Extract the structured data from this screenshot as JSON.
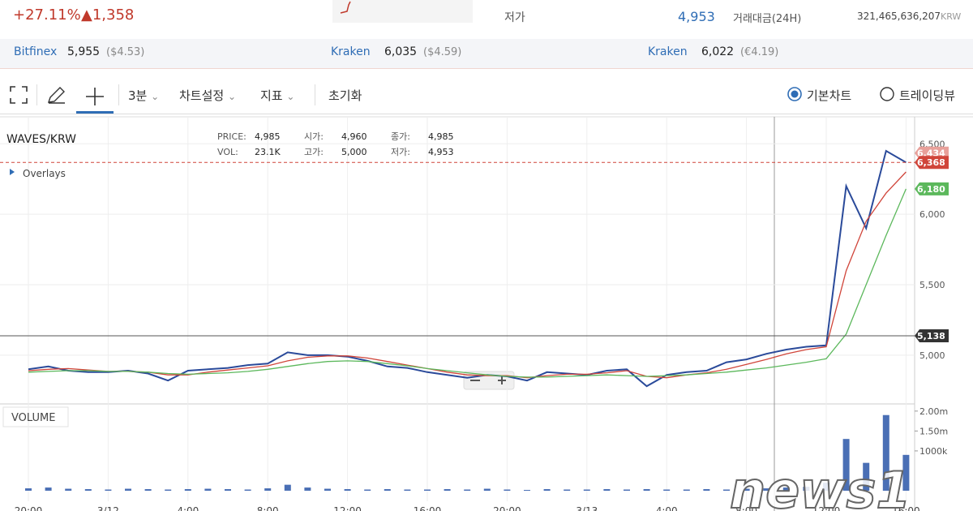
{
  "header": {
    "change_pct": "+27.11%",
    "change_amt": "▲1,358",
    "low_label": "저가",
    "low_value": "4,953",
    "volume_label": "거래대금(24H)",
    "volume_value": "321,465,636,207",
    "volume_unit": "KRW"
  },
  "exchanges": [
    {
      "name": "Bitfinex",
      "price": "5,955",
      "converted": "($4.53)"
    },
    {
      "name": "Kraken",
      "price": "6,035",
      "converted": "($4.59)"
    },
    {
      "name": "Kraken",
      "price": "6,022",
      "converted": "(€4.19)"
    }
  ],
  "toolbar": {
    "interval": "3분",
    "settings": "차트설정",
    "indicators": "지표",
    "reset": "초기화",
    "options": [
      "기본차트",
      "트레이딩뷰"
    ]
  },
  "chart_data": [
    {
      "type": "line",
      "title": "WAVES/KRW",
      "overlays": "Overlays",
      "info": [
        {
          "label": "PRICE:",
          "value": "4,985"
        },
        {
          "label": "시가:",
          "value": "4,960"
        },
        {
          "label": "종가:",
          "value": "4,985"
        },
        {
          "label": "VOL:",
          "value": "23.1K"
        },
        {
          "label": "고가:",
          "value": "5,000"
        },
        {
          "label": "저가:",
          "value": "4,953"
        }
      ],
      "categories": [
        "20:00",
        null,
        null,
        null,
        "3/12",
        null,
        null,
        null,
        "4:00",
        null,
        null,
        null,
        "8:00",
        null,
        null,
        null,
        "12:00",
        null,
        null,
        null,
        "16:00",
        null,
        null,
        null,
        "20:00",
        null,
        null,
        null,
        "3/13",
        null,
        null,
        null,
        "4:00",
        null,
        null,
        null,
        "8:00",
        null,
        null,
        null,
        "12:00",
        null,
        null,
        null,
        "16:00"
      ],
      "series": [
        {
          "color": "#2a4a9a",
          "values": [
            4900,
            4920,
            4890,
            4880,
            4880,
            4890,
            4870,
            4820,
            4890,
            4900,
            4910,
            4930,
            4940,
            5020,
            5000,
            5000,
            4990,
            4960,
            4920,
            4910,
            4880,
            4860,
            4840,
            4860,
            4850,
            4820,
            4880,
            4870,
            4860,
            4890,
            4900,
            4780,
            4860,
            4880,
            4890,
            4950,
            4970,
            5010,
            5040,
            5060,
            5070,
            6200,
            5900,
            6450,
            6368
          ]
        },
        {
          "color": "#d0453a",
          "values": [
            4890,
            4900,
            4905,
            4895,
            4885,
            4885,
            4880,
            4860,
            4860,
            4880,
            4895,
            4910,
            4925,
            4960,
            4985,
            4995,
            4995,
            4980,
            4955,
            4930,
            4905,
            4880,
            4860,
            4855,
            4855,
            4840,
            4855,
            4865,
            4865,
            4875,
            4890,
            4850,
            4840,
            4860,
            4875,
            4900,
            4935,
            4970,
            5010,
            5040,
            5060,
            5600,
            5950,
            6150,
            6300
          ]
        },
        {
          "color": "#5cb85c",
          "values": [
            4880,
            4885,
            4890,
            4890,
            4885,
            4885,
            4880,
            4870,
            4865,
            4870,
            4875,
            4885,
            4900,
            4920,
            4940,
            4955,
            4960,
            4955,
            4940,
            4925,
            4905,
            4890,
            4875,
            4860,
            4850,
            4845,
            4845,
            4850,
            4855,
            4860,
            4855,
            4850,
            4855,
            4860,
            4870,
            4880,
            4895,
            4910,
            4930,
            4950,
            4975,
            5150,
            5500,
            5850,
            6180
          ]
        }
      ],
      "ylim": [
        4660,
        6680
      ],
      "yticks": [
        {
          "value": 5000,
          "label": "5,000"
        },
        {
          "value": 5500,
          "label": "5,500"
        },
        {
          "value": 6000,
          "label": "6,000"
        },
        {
          "value": 6500,
          "label": "6,500"
        }
      ],
      "grid": true,
      "price_tags": [
        {
          "value": 6434,
          "label": "6,434",
          "color": "#e8a09a"
        },
        {
          "value": 6368,
          "label": "6,368",
          "color": "#d0453a"
        },
        {
          "value": 6180,
          "label": "6,180",
          "color": "#5cb85c"
        },
        {
          "value": 5138,
          "label": "5,138",
          "color": "#333333"
        }
      ]
    },
    {
      "type": "bar",
      "title": "VOLUME",
      "color": "#4a6fb5",
      "values": [
        60000,
        80000,
        50000,
        40000,
        30000,
        50000,
        40000,
        30000,
        40000,
        50000,
        40000,
        30000,
        60000,
        150000,
        80000,
        50000,
        40000,
        30000,
        40000,
        30000,
        30000,
        40000,
        30000,
        50000,
        30000,
        20000,
        40000,
        30000,
        30000,
        40000,
        30000,
        40000,
        30000,
        30000,
        40000,
        30000,
        50000,
        60000,
        80000,
        100000,
        200000,
        1300000,
        700000,
        1900000,
        900000
      ],
      "ylim": [
        0,
        2200000
      ],
      "yticks": [
        {
          "value": 2000000,
          "label": "2.00m"
        },
        {
          "value": 1500000,
          "label": "1.50m"
        },
        {
          "value": 1000000,
          "label": "1000k"
        }
      ]
    }
  ],
  "watermark": "news1"
}
